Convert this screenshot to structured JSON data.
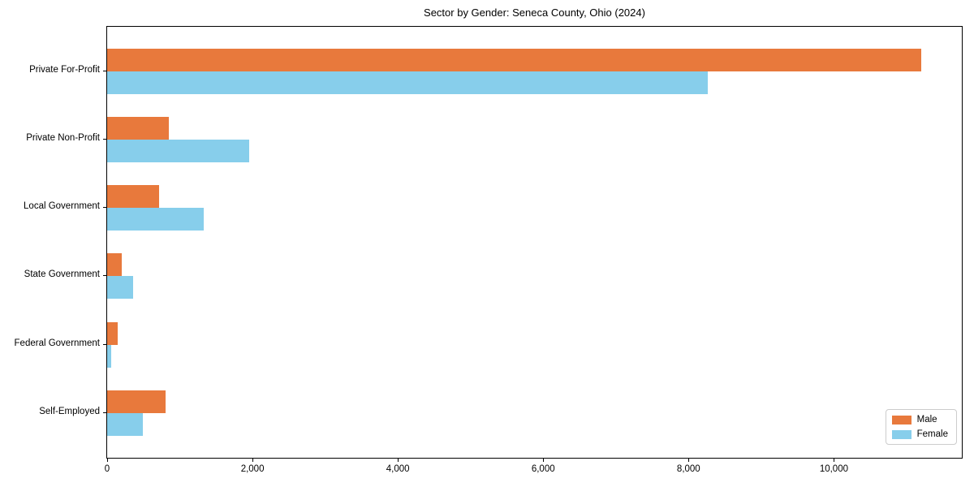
{
  "title": "Sector by Gender: Seneca County, Ohio (2024)",
  "chart_data": {
    "type": "bar",
    "orientation": "horizontal",
    "title": "Sector by Gender: Seneca County, Ohio (2024)",
    "xlabel": "",
    "ylabel": "",
    "categories": [
      "Private For-Profit",
      "Private Non-Profit",
      "Local Government",
      "State Government",
      "Federal Government",
      "Self-Employed"
    ],
    "series": [
      {
        "name": "Male",
        "color": "#E8793C",
        "values": [
          11200,
          850,
          715,
          200,
          145,
          800
        ]
      },
      {
        "name": "Female",
        "color": "#87CEEB",
        "values": [
          8260,
          1950,
          1325,
          355,
          60,
          490
        ]
      }
    ],
    "xlim": [
      0,
      11760
    ],
    "x_ticks": [
      0,
      2000,
      4000,
      6000,
      8000,
      10000
    ],
    "x_tick_labels": [
      "0",
      "2,000",
      "4,000",
      "6,000",
      "8,000",
      "10,000"
    ],
    "grid": false,
    "legend_position": "lower right"
  }
}
